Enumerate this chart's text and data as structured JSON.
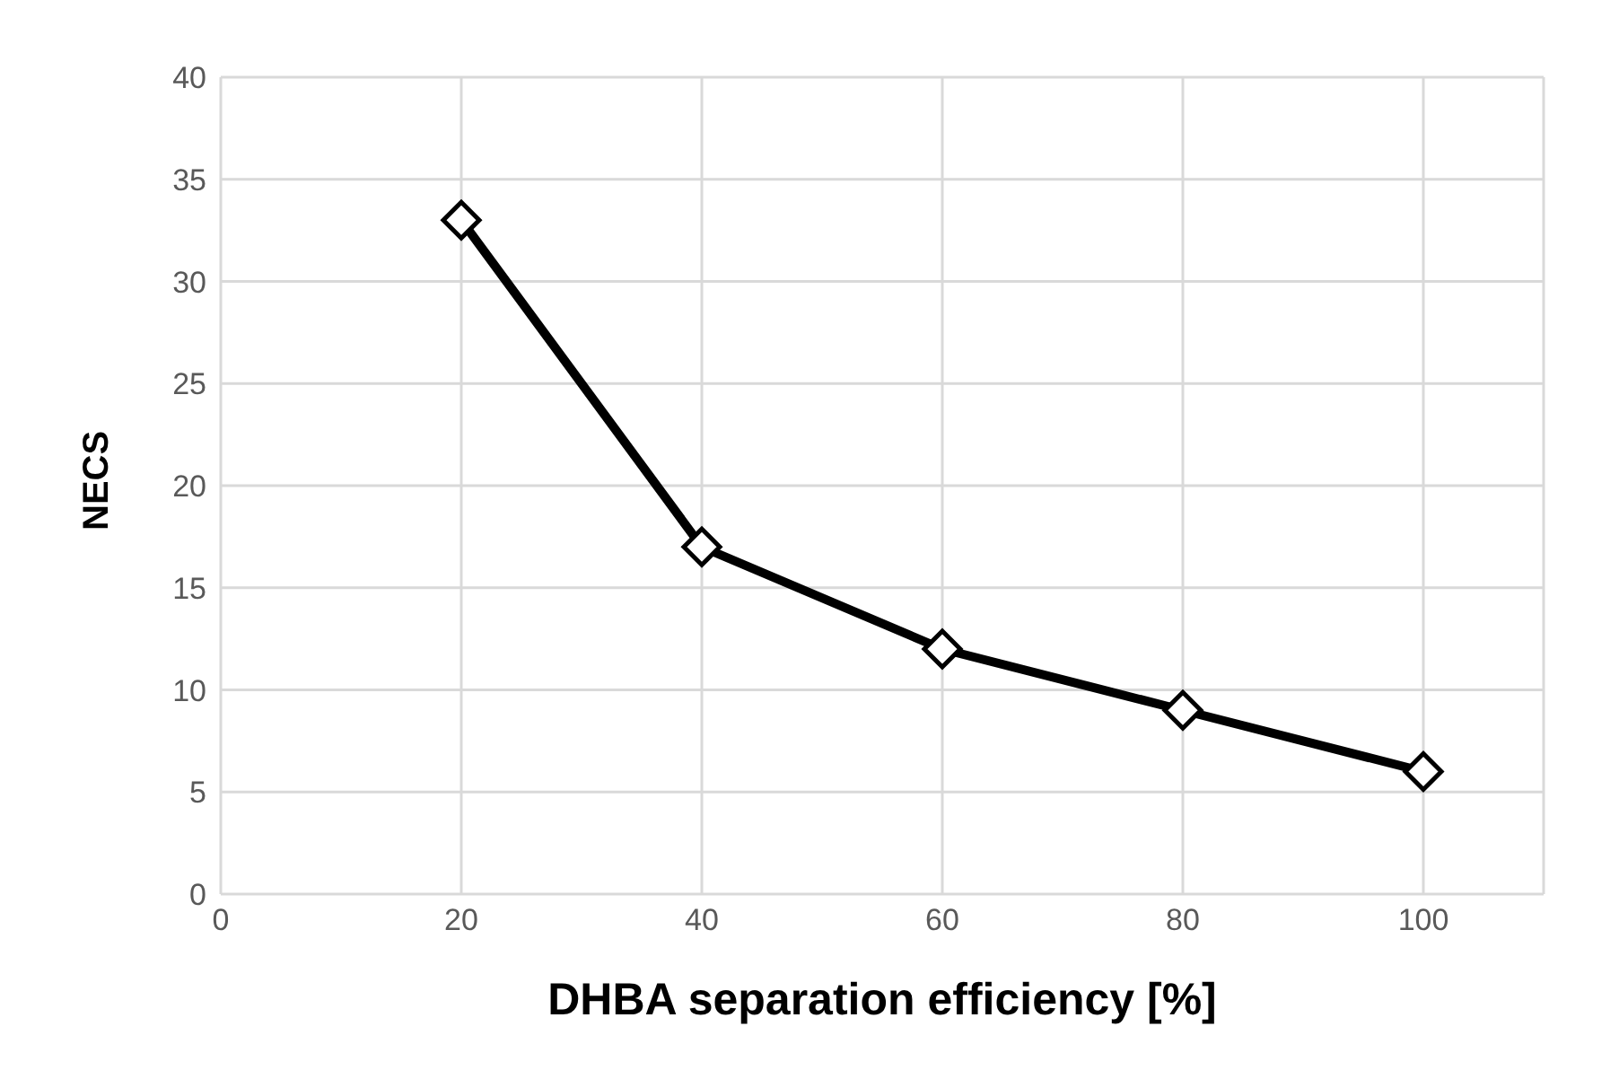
{
  "chart_data": {
    "type": "line",
    "xlabel": "DHBA separation efficiency [%]",
    "ylabel": "NECS",
    "x": [
      20,
      40,
      60,
      80,
      100
    ],
    "series": [
      {
        "color": "#000000",
        "values": [
          33,
          17,
          12,
          9,
          6
        ]
      }
    ],
    "xlim": [
      0,
      110
    ],
    "xticks": [
      0,
      20,
      40,
      60,
      80,
      100
    ],
    "ylim": [
      0,
      40
    ],
    "yticks": [
      0,
      5,
      10,
      15,
      20,
      25,
      30,
      35,
      40
    ],
    "grid": true,
    "marker": "diamond",
    "line_style": "solid",
    "legend": false
  }
}
